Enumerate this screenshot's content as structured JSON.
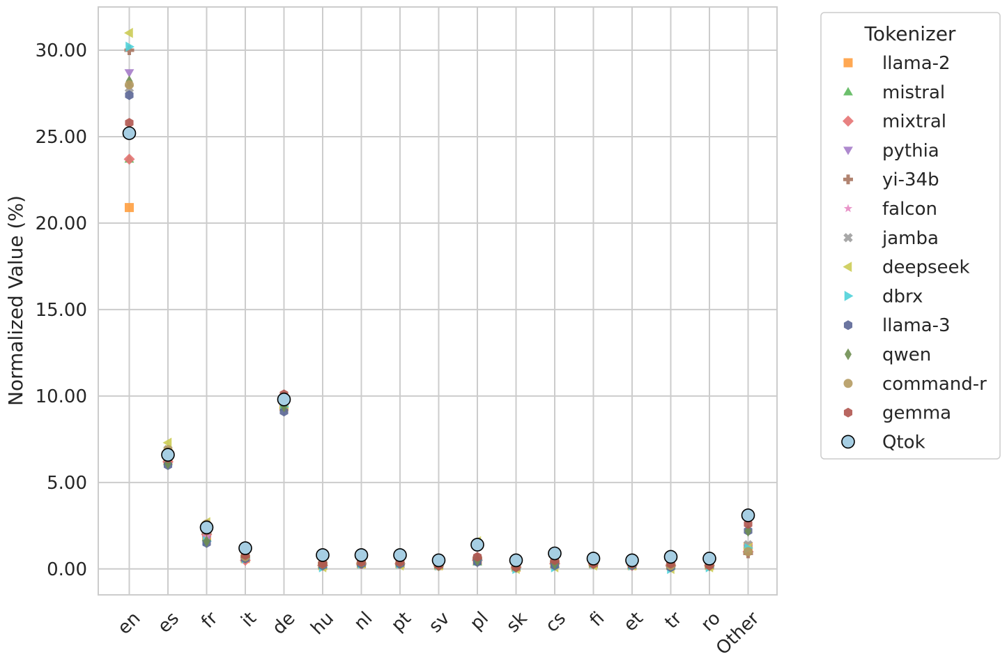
{
  "chart_data": {
    "type": "scatter",
    "ylabel": "Normalized Value (%)",
    "xlabel": "",
    "ylim": [
      -1.5,
      32.5
    ],
    "yticks": [
      "0.00",
      "5.00",
      "10.00",
      "15.00",
      "20.00",
      "25.00",
      "30.00"
    ],
    "categories": [
      "en",
      "es",
      "fr",
      "it",
      "de",
      "hu",
      "nl",
      "pt",
      "sv",
      "pl",
      "sk",
      "cs",
      "fi",
      "et",
      "tr",
      "ro",
      "Other"
    ],
    "grid": true,
    "legend_title": "Tokenizer",
    "legend_position": "outside-right",
    "series": [
      {
        "name": "llama-2",
        "marker": "square",
        "color": "#ff9f40",
        "values": [
          20.9,
          6.3,
          1.9,
          0.6,
          9.4,
          0.2,
          0.3,
          0.3,
          0.2,
          0.5,
          0.1,
          0.3,
          0.3,
          0.2,
          0.2,
          0.2,
          1.3
        ]
      },
      {
        "name": "mistral",
        "marker": "triangle-up",
        "color": "#5cb85c",
        "values": [
          23.7,
          6.2,
          1.8,
          0.6,
          9.5,
          0.2,
          0.3,
          0.3,
          0.2,
          0.4,
          0.1,
          0.3,
          0.3,
          0.2,
          0.2,
          0.2,
          1.1
        ]
      },
      {
        "name": "mixtral",
        "marker": "diamond",
        "color": "#e57373",
        "values": [
          23.7,
          6.2,
          2.0,
          0.5,
          9.6,
          0.2,
          0.3,
          0.3,
          0.2,
          0.5,
          0.1,
          0.3,
          0.3,
          0.2,
          0.2,
          0.2,
          1.0
        ]
      },
      {
        "name": "pythia",
        "marker": "triangle-down",
        "color": "#a57cc9",
        "values": [
          28.7,
          6.5,
          1.7,
          0.6,
          9.5,
          0.2,
          0.3,
          0.3,
          0.2,
          0.4,
          0.1,
          0.2,
          0.3,
          0.2,
          0.2,
          0.2,
          1.2
        ]
      },
      {
        "name": "yi-34b",
        "marker": "plus",
        "color": "#a87560",
        "values": [
          30.0,
          6.6,
          2.1,
          0.7,
          9.8,
          0.3,
          0.3,
          0.3,
          0.2,
          0.6,
          0.1,
          0.4,
          0.3,
          0.3,
          0.2,
          0.2,
          0.9
        ]
      },
      {
        "name": "falcon",
        "marker": "star",
        "color": "#e78ac3",
        "values": [
          27.9,
          6.4,
          1.9,
          0.6,
          9.7,
          0.3,
          0.3,
          0.3,
          0.2,
          0.5,
          0.1,
          0.3,
          0.3,
          0.2,
          0.2,
          0.2,
          1.1
        ]
      },
      {
        "name": "jamba",
        "marker": "x",
        "color": "#9e9e9e",
        "values": [
          27.8,
          6.9,
          2.2,
          0.7,
          9.6,
          0.3,
          0.3,
          0.3,
          0.2,
          0.6,
          0.1,
          0.4,
          0.3,
          0.3,
          0.2,
          0.2,
          1.4
        ]
      },
      {
        "name": "deepseek",
        "marker": "triangle-left",
        "color": "#cccc55",
        "values": [
          31.0,
          7.3,
          2.7,
          0.8,
          9.3,
          0.1,
          0.3,
          0.2,
          0.2,
          1.6,
          0.0,
          0.1,
          0.2,
          0.2,
          0.0,
          0.1,
          1.2
        ]
      },
      {
        "name": "dbrx",
        "marker": "triangle-right",
        "color": "#4fd1d9",
        "values": [
          30.2,
          6.5,
          1.6,
          0.6,
          9.4,
          0.1,
          0.3,
          0.3,
          0.2,
          0.5,
          0.0,
          0.1,
          0.3,
          0.2,
          0.0,
          0.1,
          1.2
        ]
      },
      {
        "name": "llama-3",
        "marker": "hexagon",
        "color": "#5b6696",
        "values": [
          27.4,
          6.0,
          1.5,
          0.6,
          9.1,
          0.2,
          0.3,
          0.3,
          0.2,
          0.4,
          0.1,
          0.2,
          0.3,
          0.2,
          0.1,
          0.2,
          2.2
        ]
      },
      {
        "name": "qwen",
        "marker": "thin-diamond",
        "color": "#6f8f52",
        "values": [
          28.2,
          6.1,
          1.6,
          0.7,
          9.4,
          0.3,
          0.4,
          0.4,
          0.2,
          0.5,
          0.1,
          0.3,
          0.3,
          0.3,
          0.2,
          0.2,
          2.2
        ]
      },
      {
        "name": "command-r",
        "marker": "circle",
        "color": "#b59b62",
        "values": [
          28.0,
          6.9,
          2.6,
          0.7,
          9.7,
          0.3,
          0.4,
          0.4,
          0.2,
          1.5,
          0.1,
          0.9,
          0.3,
          0.3,
          0.2,
          0.2,
          1.0
        ]
      },
      {
        "name": "gemma",
        "marker": "hexagon",
        "color": "#b0554f",
        "values": [
          25.8,
          6.4,
          2.2,
          0.8,
          10.1,
          0.3,
          0.4,
          0.4,
          0.2,
          0.7,
          0.1,
          0.5,
          0.3,
          0.3,
          0.3,
          0.2,
          2.6
        ]
      },
      {
        "name": "Qtok",
        "marker": "circle-outlined",
        "color": "#a6cee3",
        "values": [
          25.2,
          6.6,
          2.4,
          1.2,
          9.8,
          0.8,
          0.8,
          0.8,
          0.5,
          1.4,
          0.5,
          0.9,
          0.6,
          0.5,
          0.7,
          0.6,
          3.1
        ]
      }
    ]
  }
}
